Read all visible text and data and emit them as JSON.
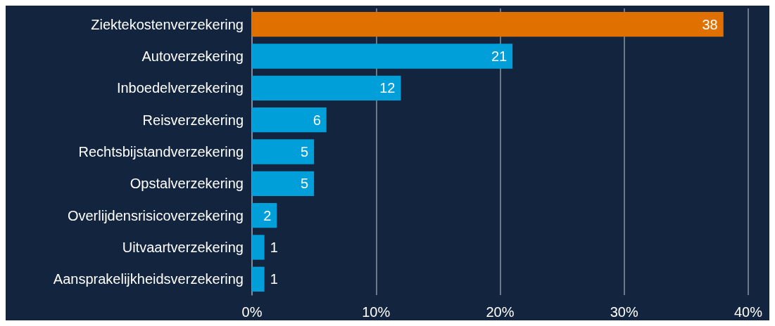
{
  "chart_data": {
    "type": "bar",
    "orientation": "horizontal",
    "categories": [
      "Ziektekostenverzekering",
      "Autoverzekering",
      "Inboedelverzekering",
      "Reisverzekering",
      "Rechtsbijstandverzekering",
      "Opstalverzekering",
      "Overlijdensrisicoverzekering",
      "Uitvaartverzekering",
      "Aansprakelijkheidsverzekering"
    ],
    "values": [
      38,
      21,
      12,
      6,
      5,
      5,
      2,
      1,
      1
    ],
    "colors": [
      "#e07000",
      "#009fda",
      "#009fda",
      "#009fda",
      "#009fda",
      "#009fda",
      "#009fda",
      "#009fda",
      "#009fda"
    ],
    "xlim": [
      0,
      40
    ],
    "xticks": [
      {
        "value": 0,
        "label": "0%"
      },
      {
        "value": 10,
        "label": "10%"
      },
      {
        "value": 20,
        "label": "20%"
      },
      {
        "value": 30,
        "label": "30%"
      },
      {
        "value": 40,
        "label": "40%"
      }
    ],
    "grid": "x",
    "data_labels": true
  }
}
